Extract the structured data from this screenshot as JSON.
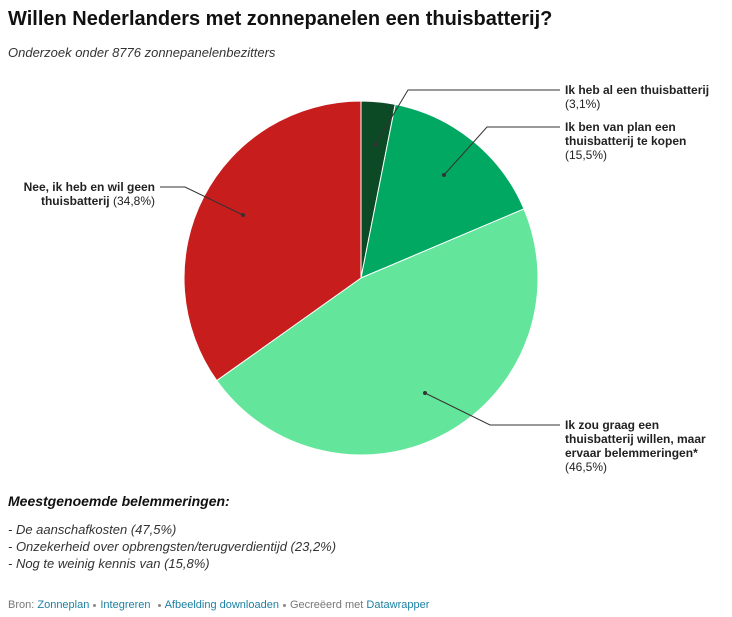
{
  "chart_data": {
    "type": "pie",
    "title": "Willen Nederlanders met zonnepanelen een thuisbatterij?",
    "subtitle": "Onderzoek onder 8776 zonnepanelenbezitters",
    "categories": [
      "Ik heb al een thuisbatterij",
      "Ik ben van plan een thuisbatterij te kopen",
      "Ik zou graag een thuisbatterij willen, maar ervaar belemmeringen*",
      "Nee, ik heb en wil geen thuisbatterij"
    ],
    "values": [
      3.1,
      15.5,
      46.5,
      34.8
    ],
    "value_labels": [
      "(3,1%)",
      "(15,5%)",
      "(46,5%)",
      "(34,8%)"
    ],
    "colors": [
      "#0b4a25",
      "#00a862",
      "#63e59b",
      "#c71e1d"
    ]
  },
  "notes": {
    "title": "Meestgenoemde belemmeringen:",
    "items": [
      "- De aanschafkosten (47,5%)",
      "- Onzekerheid over opbrengsten/terugverdientijd (23,2%)",
      "- Nog te weinig kennis van (15,8%)"
    ]
  },
  "footer": {
    "source_label": "Bron:",
    "source": "Zonneplan",
    "embed": "Integreren",
    "download": "Afbeelding downloaden",
    "made_with": "Gecreëerd met",
    "tool": "Datawrapper"
  }
}
